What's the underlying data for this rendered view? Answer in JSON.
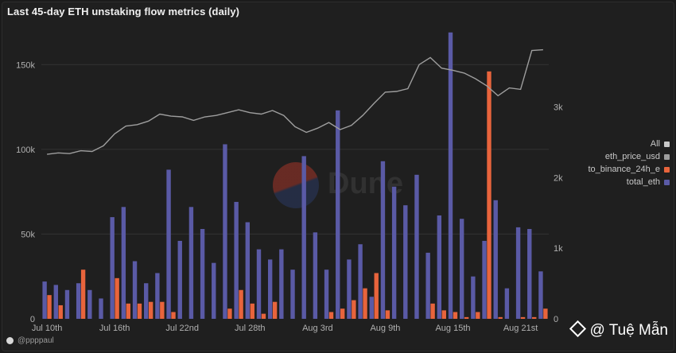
{
  "title": "Last 45-day ETH unstaking flow metrics (daily)",
  "credit": "@ppppaul",
  "watermark": "@ Tuệ Mẫn",
  "dune_text": "Dune",
  "colors": {
    "total_eth": "#5a5aa6",
    "to_binance": "#e8643c",
    "price_line": "#9e9e9e",
    "grid": "#333333",
    "axis_text": "#b0b0b0"
  },
  "chart_data": {
    "type": "bar",
    "title": "Last 45-day ETH unstaking flow metrics (daily)",
    "legend": [
      "All",
      "eth_price_usd",
      "to_binance_24h_e",
      "total_eth"
    ],
    "legend_placement": "right",
    "x_tick_labels": [
      "Jul 10th",
      "Jul 16th",
      "Jul 22nd",
      "Jul 28th",
      "Aug 3rd",
      "Aug 9th",
      "Aug 15th",
      "Aug 21st"
    ],
    "x_tick_index": [
      0,
      6,
      12,
      18,
      24,
      30,
      36,
      42
    ],
    "y_left_ticks": [
      "0",
      "50k",
      "100k",
      "150k"
    ],
    "y_left_range": [
      0,
      175000
    ],
    "y_right_ticks": [
      "0",
      "1k",
      "2k",
      "3k"
    ],
    "y_right_range": [
      0,
      4200
    ],
    "series": [
      {
        "name": "total_eth",
        "axis": "left",
        "values": [
          22000,
          20000,
          17000,
          21000,
          17000,
          12000,
          60000,
          66000,
          34000,
          21000,
          27000,
          88000,
          46000,
          66000,
          53000,
          33000,
          103000,
          69000,
          57000,
          41000,
          35000,
          41000,
          29000,
          96000,
          51000,
          29000,
          123000,
          35000,
          44000,
          13000,
          93000,
          78000,
          67000,
          85000,
          39000,
          61000,
          169000,
          59000,
          25000,
          46000,
          70000,
          18000,
          54000,
          53000,
          28000
        ]
      },
      {
        "name": "to_binance_24h_e",
        "axis": "left",
        "values": [
          14000,
          8000,
          0,
          29000,
          0,
          0,
          24000,
          9000,
          9000,
          10000,
          10000,
          4000,
          0,
          0,
          0,
          0,
          6000,
          17000,
          9000,
          3000,
          10000,
          0,
          0,
          0,
          0,
          4000,
          6000,
          11000,
          18000,
          27000,
          5000,
          0,
          0,
          0,
          9000,
          5000,
          4000,
          1000,
          4000,
          146000,
          1000,
          0,
          1000,
          1000,
          6000
        ]
      },
      {
        "name": "eth_price_usd",
        "axis": "right",
        "values": [
          2330,
          2350,
          2340,
          2380,
          2370,
          2450,
          2620,
          2730,
          2750,
          2800,
          2900,
          2870,
          2860,
          2810,
          2860,
          2880,
          2920,
          2960,
          2920,
          2900,
          2950,
          2880,
          2720,
          2640,
          2700,
          2780,
          2680,
          2740,
          2880,
          3050,
          3210,
          3220,
          3260,
          3600,
          3700,
          3550,
          3520,
          3480,
          3400,
          3300,
          3160,
          3270,
          3250,
          3800,
          3810
        ]
      }
    ]
  }
}
